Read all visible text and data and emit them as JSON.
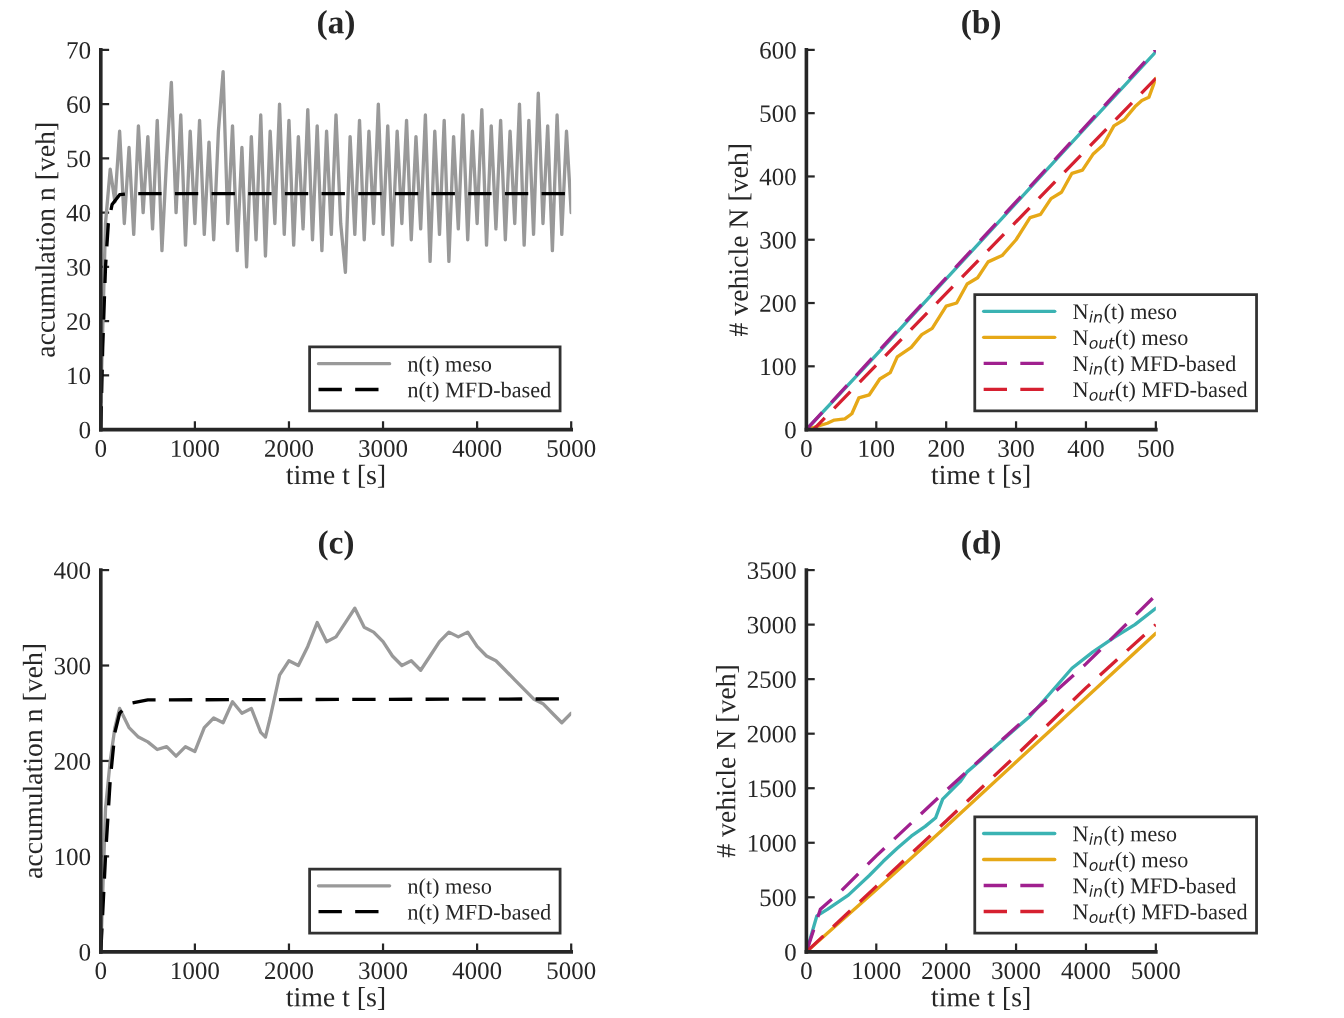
{
  "chart_data": [
    {
      "type": "line",
      "title": "(a)",
      "xlabel": "time t [s]",
      "ylabel": "accumulation n [veh]",
      "xlim": [
        0,
        5000
      ],
      "ylim": [
        0,
        70
      ],
      "xticks": [
        0,
        1000,
        2000,
        3000,
        4000,
        5000
      ],
      "yticks": [
        0,
        10,
        20,
        30,
        40,
        50,
        60,
        70
      ],
      "grid": false,
      "legend": "bottom right",
      "series": [
        {
          "name": "n(t) meso",
          "color": "#999999",
          "line_style": "solid",
          "x": [
            0,
            50,
            100,
            150,
            200,
            250,
            300,
            350,
            400,
            450,
            500,
            550,
            600,
            650,
            700,
            750,
            800,
            850,
            900,
            950,
            1000,
            1050,
            1100,
            1150,
            1200,
            1250,
            1300,
            1350,
            1400,
            1450,
            1500,
            1550,
            1600,
            1650,
            1700,
            1750,
            1800,
            1850,
            1900,
            1950,
            2000,
            2050,
            2100,
            2150,
            2200,
            2250,
            2300,
            2350,
            2400,
            2450,
            2500,
            2550,
            2600,
            2650,
            2700,
            2750,
            2800,
            2850,
            2900,
            2950,
            3000,
            3050,
            3100,
            3150,
            3200,
            3250,
            3300,
            3350,
            3400,
            3450,
            3500,
            3550,
            3600,
            3650,
            3700,
            3750,
            3800,
            3850,
            3900,
            3950,
            4000,
            4050,
            4100,
            4150,
            4200,
            4250,
            4300,
            4350,
            4400,
            4450,
            4500,
            4550,
            4600,
            4650,
            4700,
            4750,
            4800,
            4850,
            4900,
            4950,
            5000
          ],
          "values": [
            5,
            38,
            48,
            42,
            55,
            38,
            52,
            36,
            56,
            40,
            54,
            37,
            57,
            33,
            50,
            64,
            40,
            58,
            34,
            55,
            38,
            57,
            36,
            53,
            35,
            55,
            66,
            38,
            56,
            33,
            52,
            30,
            54,
            35,
            58,
            32,
            55,
            38,
            60,
            36,
            57,
            34,
            54,
            37,
            59,
            35,
            56,
            33,
            55,
            36,
            58,
            38,
            29,
            54,
            36,
            57,
            35,
            55,
            38,
            60,
            36,
            56,
            34,
            55,
            38,
            57,
            35,
            54,
            37,
            58,
            31,
            55,
            36,
            57,
            31,
            54,
            37,
            58,
            35,
            55,
            38,
            59,
            34,
            56,
            37,
            57,
            35,
            55,
            38,
            60,
            34,
            57,
            36,
            62,
            38,
            56,
            33,
            58,
            36,
            55,
            40
          ]
        },
        {
          "name": "n(t) MFD-based",
          "color": "#000000",
          "line_style": "dashed",
          "x": [
            0,
            20,
            50,
            80,
            120,
            200,
            300,
            5000
          ],
          "values": [
            0,
            15,
            30,
            38,
            41.5,
            43.3,
            43.5,
            43.5
          ]
        }
      ]
    },
    {
      "type": "line",
      "title": "(b)",
      "xlabel": "time t [s]",
      "ylabel": "# vehicle N [veh]",
      "xlim": [
        0,
        500
      ],
      "ylim": [
        0,
        600
      ],
      "xticks": [
        0,
        100,
        200,
        300,
        400,
        500
      ],
      "yticks": [
        0,
        100,
        200,
        300,
        400,
        500,
        600
      ],
      "grid": false,
      "legend": "bottom right",
      "series": [
        {
          "name": "N$_{in}$(t) meso",
          "color": "#3bb3b3",
          "line_style": "solid",
          "x": [
            0,
            100,
            200,
            300,
            400,
            500
          ],
          "values": [
            0,
            118,
            238,
            358,
            478,
            597
          ]
        },
        {
          "name": "N$_{out}$(t) meso",
          "color": "#e6a817",
          "line_style": "solid",
          "x": [
            0,
            30,
            40,
            55,
            65,
            75,
            90,
            105,
            120,
            130,
            150,
            165,
            180,
            200,
            215,
            230,
            245,
            260,
            280,
            300,
            320,
            335,
            350,
            365,
            380,
            395,
            410,
            425,
            440,
            455,
            470,
            480,
            490,
            500
          ],
          "values": [
            0,
            10,
            15,
            17,
            25,
            50,
            55,
            80,
            90,
            115,
            130,
            150,
            160,
            195,
            200,
            230,
            240,
            265,
            275,
            300,
            335,
            340,
            365,
            375,
            405,
            410,
            435,
            450,
            480,
            490,
            510,
            520,
            525,
            555
          ]
        },
        {
          "name": "N$_{in}$(t) MFD-based",
          "color": "#a0208f",
          "line_style": "dashed",
          "x": [
            0,
            500
          ],
          "values": [
            0,
            600
          ]
        },
        {
          "name": "N$_{out}$(t) MFD-based",
          "color": "#d62030",
          "line_style": "dashed",
          "x": [
            0,
            10,
            500
          ],
          "values": [
            0,
            0,
            555
          ]
        }
      ]
    },
    {
      "type": "line",
      "title": "(c)",
      "xlabel": "time t [s]",
      "ylabel": "accumulation n [veh]",
      "xlim": [
        0,
        5000
      ],
      "ylim": [
        0,
        400
      ],
      "xticks": [
        0,
        1000,
        2000,
        3000,
        4000,
        5000
      ],
      "yticks": [
        0,
        100,
        200,
        300,
        400
      ],
      "grid": false,
      "legend": "bottom right",
      "series": [
        {
          "name": "n(t) meso",
          "color": "#999999",
          "line_style": "solid",
          "x": [
            0,
            50,
            100,
            150,
            200,
            300,
            400,
            500,
            600,
            700,
            800,
            900,
            1000,
            1100,
            1200,
            1300,
            1400,
            1500,
            1600,
            1700,
            1750,
            1800,
            1900,
            2000,
            2100,
            2200,
            2300,
            2400,
            2500,
            2600,
            2700,
            2800,
            2900,
            3000,
            3100,
            3200,
            3300,
            3400,
            3500,
            3600,
            3700,
            3800,
            3900,
            4000,
            4100,
            4200,
            4300,
            4400,
            4500,
            4600,
            4700,
            4800,
            4900,
            5000
          ],
          "values": [
            0,
            150,
            200,
            235,
            255,
            235,
            225,
            220,
            212,
            215,
            205,
            215,
            210,
            235,
            245,
            240,
            262,
            250,
            255,
            230,
            225,
            245,
            290,
            305,
            300,
            320,
            345,
            325,
            330,
            345,
            360,
            340,
            335,
            325,
            310,
            300,
            305,
            295,
            310,
            325,
            335,
            330,
            335,
            320,
            310,
            305,
            295,
            285,
            275,
            265,
            260,
            250,
            240,
            250
          ]
        },
        {
          "name": "n(t) MFD-based",
          "color": "#000000",
          "line_style": "dashed",
          "x": [
            0,
            50,
            100,
            150,
            200,
            300,
            500,
            5000
          ],
          "values": [
            0,
            100,
            180,
            230,
            250,
            260,
            264,
            265
          ]
        }
      ]
    },
    {
      "type": "line",
      "title": "(d)",
      "xlabel": "time t [s]",
      "ylabel": "# vehicle N [veh]",
      "xlim": [
        0,
        5000
      ],
      "ylim": [
        0,
        3500
      ],
      "xticks": [
        0,
        1000,
        2000,
        3000,
        4000,
        5000
      ],
      "yticks": [
        0,
        500,
        1000,
        1500,
        2000,
        2500,
        3000,
        3500
      ],
      "grid": false,
      "legend": "bottom right",
      "series": [
        {
          "name": "N$_{in}$(t) meso",
          "color": "#3bb3b3",
          "line_style": "solid",
          "x": [
            0,
            150,
            300,
            600,
            900,
            1100,
            1300,
            1500,
            1700,
            1850,
            1950,
            2200,
            2300,
            2500,
            2700,
            3000,
            3200,
            3500,
            3800,
            4100,
            4400,
            4700,
            5000
          ],
          "values": [
            0,
            330,
            390,
            520,
            700,
            830,
            950,
            1060,
            1150,
            1230,
            1400,
            1560,
            1650,
            1760,
            1880,
            2050,
            2160,
            2380,
            2600,
            2750,
            2880,
            3000,
            3150
          ]
        },
        {
          "name": "N$_{out}$(t) meso",
          "color": "#e6a817",
          "line_style": "solid",
          "x": [
            0,
            1000,
            2000,
            3000,
            4000,
            5000
          ],
          "values": [
            0,
            570,
            1150,
            1740,
            2330,
            2920
          ]
        },
        {
          "name": "N$_{in}$(t) MFD-based",
          "color": "#a0208f",
          "line_style": "dashed",
          "x": [
            0,
            200,
            500,
            1000,
            2000,
            3000,
            4000,
            5000
          ],
          "values": [
            0,
            390,
            560,
            880,
            1480,
            2060,
            2640,
            3270
          ]
        },
        {
          "name": "N$_{out}$(t) MFD-based",
          "color": "#d62030",
          "line_style": "dashed",
          "x": [
            0,
            1000,
            2000,
            3000,
            4000,
            5000
          ],
          "values": [
            0,
            600,
            1200,
            1800,
            2420,
            3000
          ]
        }
      ]
    }
  ]
}
